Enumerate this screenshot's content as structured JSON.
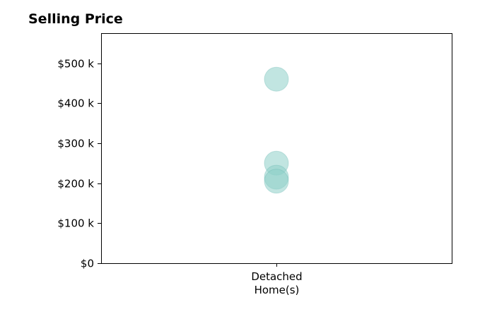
{
  "chart_data": {
    "type": "scatter",
    "title": "Selling Price",
    "categories": [
      "Detached\nHome(s)"
    ],
    "series": [
      {
        "category": "Detached\nHome(s)",
        "values": [
          460000,
          250000,
          215000,
          205000
        ]
      }
    ],
    "ylim": [
      0,
      575000
    ],
    "yticks": [
      0,
      100000,
      200000,
      300000,
      400000,
      500000
    ],
    "ytick_labels": [
      "$0",
      "$100 k",
      "$200 k",
      "$300 k",
      "$400 k",
      "$500 k"
    ],
    "xlabel": "",
    "ylabel": "",
    "grid": false,
    "legend": "none",
    "marker_color": "#8ecfc9",
    "marker_alpha": 0.55,
    "marker_edge_color": "#6bb8b1"
  }
}
